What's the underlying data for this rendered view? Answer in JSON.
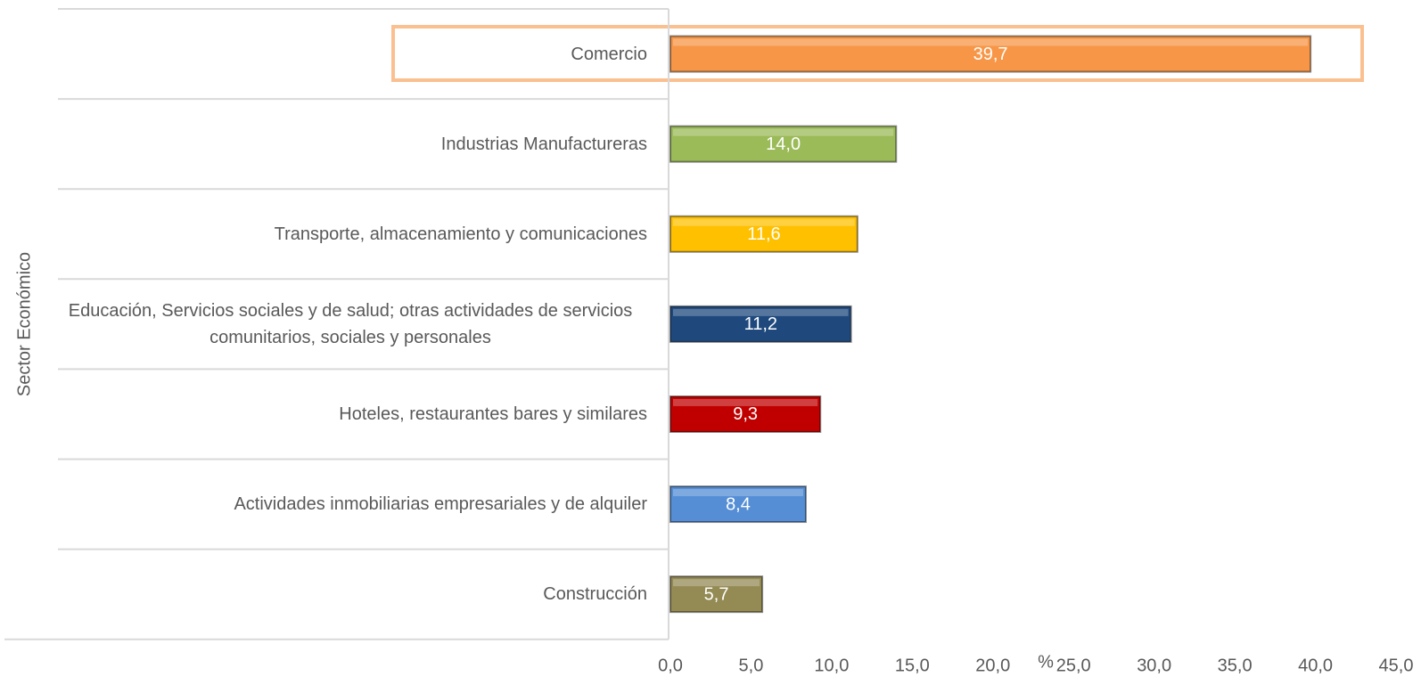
{
  "chart_data": {
    "type": "bar",
    "orientation": "horizontal",
    "xlabel": "%",
    "ylabel": "Sector Económico",
    "categories": [
      "Comercio",
      "Industrias Manufactureras",
      "Transporte, almacenamiento y comunicaciones",
      "Educación, Servicios sociales y de salud;  otras actividades  de servicios comunitarios, sociales y personales",
      "Hoteles, restaurantes bares y similares",
      "Actividades inmobiliarias empresariales y de alquiler",
      "Construcción"
    ],
    "values": [
      39.7,
      14.0,
      11.6,
      11.2,
      9.3,
      8.4,
      5.7
    ],
    "value_labels": [
      "39,7",
      "14,0",
      "11,6",
      "11,2",
      "9,3",
      "8,4",
      "5,7"
    ],
    "colors": [
      "#f79646",
      "#9bbb59",
      "#ffc000",
      "#1f497d",
      "#c00000",
      "#558ed5",
      "#948a54"
    ],
    "xlim": [
      0,
      45
    ],
    "xticks": [
      {
        "value": 0,
        "label": "0,0"
      },
      {
        "value": 5,
        "label": "5,0"
      },
      {
        "value": 10,
        "label": "10,0"
      },
      {
        "value": 15,
        "label": "15,0"
      },
      {
        "value": 20,
        "label": "20,0"
      },
      {
        "value": 25,
        "label": "25,0"
      },
      {
        "value": 30,
        "label": "30,0"
      },
      {
        "value": 35,
        "label": "35,0"
      },
      {
        "value": 40,
        "label": "40,0"
      },
      {
        "value": 45,
        "label": "45,0"
      }
    ]
  }
}
